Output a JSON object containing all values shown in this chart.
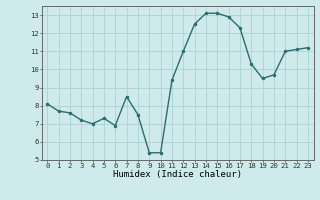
{
  "x": [
    0,
    1,
    2,
    3,
    4,
    5,
    6,
    7,
    8,
    9,
    10,
    11,
    12,
    13,
    14,
    15,
    16,
    17,
    18,
    19,
    20,
    21,
    22,
    23
  ],
  "y": [
    8.1,
    7.7,
    7.6,
    7.2,
    7.0,
    7.3,
    6.9,
    8.5,
    7.5,
    5.4,
    5.4,
    9.4,
    11.0,
    12.5,
    13.1,
    13.1,
    12.9,
    12.3,
    10.3,
    9.5,
    9.7,
    11.0,
    11.1,
    11.2
  ],
  "xlabel": "Humidex (Indice chaleur)",
  "ylim": [
    5,
    13.5
  ],
  "xlim": [
    -0.5,
    23.5
  ],
  "yticks": [
    5,
    6,
    7,
    8,
    9,
    10,
    11,
    12,
    13
  ],
  "xticks": [
    0,
    1,
    2,
    3,
    4,
    5,
    6,
    7,
    8,
    9,
    10,
    11,
    12,
    13,
    14,
    15,
    16,
    17,
    18,
    19,
    20,
    21,
    22,
    23
  ],
  "line_color": "#2d6e6e",
  "marker": ".",
  "bg_color": "#ceeaea",
  "grid_color": "#aad4d4",
  "spine_color": "#666666",
  "tick_color": "#333333",
  "xlabel_fontsize": 6.5,
  "tick_fontsize": 5.2,
  "linewidth": 1.0,
  "markersize": 3
}
